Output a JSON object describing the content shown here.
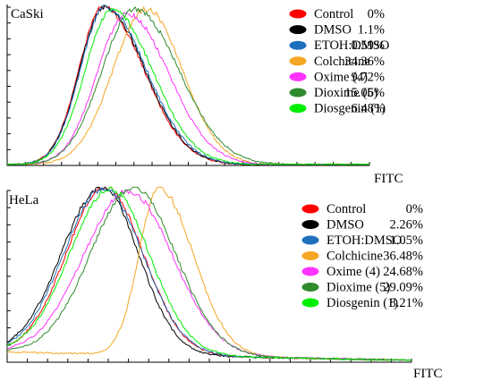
{
  "chart_data": [
    {
      "type": "line",
      "panel_label": "CaSki",
      "xlabel": "FITC",
      "ylabel": "",
      "grid": false,
      "legend_position": "right",
      "series": [
        {
          "name": "Control",
          "percent": "0%",
          "color": "#ff0000",
          "peak": 0.265,
          "sigma_left": 0.067,
          "sigma_right": 0.112,
          "height": 1.0
        },
        {
          "name": "DMSO",
          "percent": "1.1%",
          "color": "#000000",
          "peak": 0.268,
          "sigma_left": 0.068,
          "sigma_right": 0.112,
          "height": 1.0
        },
        {
          "name": "ETOH:DMSO",
          "percent": "0.59%",
          "color": "#1f6fbf",
          "peak": 0.27,
          "sigma_left": 0.068,
          "sigma_right": 0.114,
          "height": 1.0
        },
        {
          "name": "Colchicine",
          "percent": "34.36%",
          "color": "#f5a623",
          "peak": 0.384,
          "sigma_left": 0.092,
          "sigma_right": 0.1,
          "height": 0.99
        },
        {
          "name": "Oxime (4)",
          "percent": "9.72%",
          "color": "#ff33ff",
          "peak": 0.33,
          "sigma_left": 0.082,
          "sigma_right": 0.115,
          "height": 0.96
        },
        {
          "name": "Dioxime (5)",
          "percent": "15.06%",
          "color": "#2e8b2e",
          "peak": 0.352,
          "sigma_left": 0.09,
          "sigma_right": 0.122,
          "height": 0.99
        },
        {
          "name": "Diosgenin (1)",
          "percent": "6.48%",
          "color": "#00ee00",
          "peak": 0.29,
          "sigma_left": 0.075,
          "sigma_right": 0.112,
          "height": 0.98
        }
      ]
    },
    {
      "type": "line",
      "panel_label": "HeLa",
      "xlabel": "FITC",
      "ylabel": "",
      "grid": false,
      "legend_position": "right",
      "series": [
        {
          "name": "Control",
          "percent": "0%",
          "color": "#ff0000",
          "peak": 0.242,
          "sigma_left": 0.095,
          "sigma_right": 0.095,
          "height": 1.0
        },
        {
          "name": "DMSO",
          "percent": "2.26%",
          "color": "#000000",
          "peak": 0.235,
          "sigma_left": 0.1,
          "sigma_right": 0.09,
          "height": 1.0
        },
        {
          "name": "ETOH:DMSO",
          "percent": "1.05%",
          "color": "#1f6fbf",
          "peak": 0.238,
          "sigma_left": 0.098,
          "sigma_right": 0.098,
          "height": 0.99
        },
        {
          "name": "Colchicine",
          "percent": "36.48%",
          "color": "#f5a623",
          "peak": 0.376,
          "sigma_left": 0.05,
          "sigma_right": 0.085,
          "height": 1.0
        },
        {
          "name": "Oxime (4)",
          "percent": "24.68%",
          "color": "#ff33ff",
          "peak": 0.3,
          "sigma_left": 0.11,
          "sigma_right": 0.11,
          "height": 0.98
        },
        {
          "name": "Dioxime (5)",
          "percent": "29.09%",
          "color": "#2e8b2e",
          "peak": 0.312,
          "sigma_left": 0.105,
          "sigma_right": 0.105,
          "height": 1.0
        },
        {
          "name": "Diosgenin (1)",
          "percent": "8.21%",
          "color": "#00ee00",
          "peak": 0.255,
          "sigma_left": 0.1,
          "sigma_right": 0.097,
          "height": 0.99
        }
      ]
    }
  ]
}
